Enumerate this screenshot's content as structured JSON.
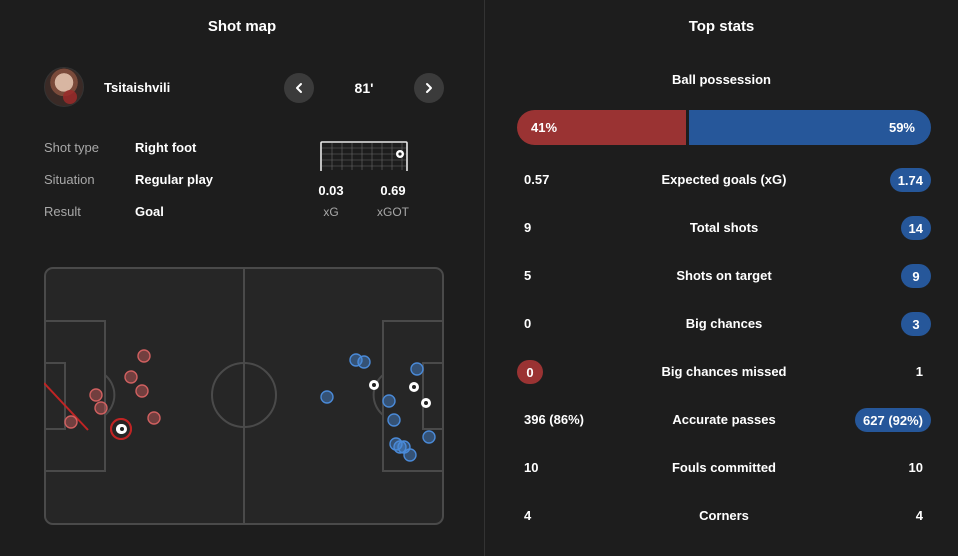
{
  "shotmap": {
    "title": "Shot map",
    "player_name": "Tsitaishvili",
    "minute": "81'",
    "details": [
      {
        "label": "Shot type",
        "value": "Right foot"
      },
      {
        "label": "Situation",
        "value": "Regular play"
      },
      {
        "label": "Result",
        "value": "Goal"
      }
    ],
    "xg": {
      "value": "0.03",
      "label": "xG"
    },
    "xgot": {
      "value": "0.69",
      "label": "xGOT"
    }
  },
  "colors": {
    "home": "#9a3333",
    "away": "#26579a",
    "home_shot": "#d06060",
    "away_shot": "#4a8ad8",
    "background": "#1d1d1d"
  },
  "topstats": {
    "title": "Top stats",
    "possession": {
      "label": "Ball possession",
      "home": "41%",
      "away": "59%",
      "home_value": 41,
      "away_value": 59
    },
    "rows": [
      {
        "label": "Expected goals (xG)",
        "home": "0.57",
        "away": "1.74",
        "highlight": "away"
      },
      {
        "label": "Total shots",
        "home": "9",
        "away": "14",
        "highlight": "away"
      },
      {
        "label": "Shots on target",
        "home": "5",
        "away": "9",
        "highlight": "away"
      },
      {
        "label": "Big chances",
        "home": "0",
        "away": "3",
        "highlight": "away"
      },
      {
        "label": "Big chances missed",
        "home": "0",
        "away": "1",
        "highlight": "home"
      },
      {
        "label": "Accurate passes",
        "home": "396 (86%)",
        "away": "627 (92%)",
        "highlight": "away"
      },
      {
        "label": "Fouls committed",
        "home": "10",
        "away": "10",
        "highlight": "none"
      },
      {
        "label": "Corners",
        "home": "4",
        "away": "4",
        "highlight": "none"
      }
    ]
  }
}
